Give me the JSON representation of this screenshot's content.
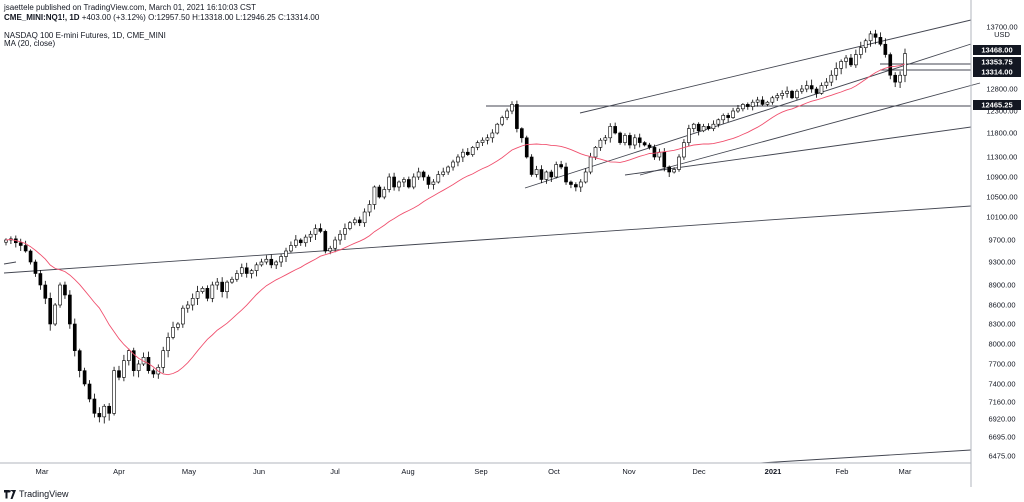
{
  "header": {
    "publisher": "jsaettele published on TradingView.com, March 01, 2021 16:10:03 CST",
    "symbol": "CME_MINI:NQ1!, 1D",
    "ohlc": "+403.00 (+3.12%) O:12957.50 H:13318.00 L:12946.25 C:13314.00",
    "instrument": "NASDAQ 100 E-mini Futures, 1D, CME_MINI",
    "study": "MA (20, close)"
  },
  "footer": {
    "brand": "TradingView"
  },
  "colors": {
    "up": "#ffffff",
    "down": "#000000",
    "wick": "#000000",
    "ma": "#f0506e",
    "trendline": "#434651",
    "level_label_bg": "#131722",
    "level_label_fg": "#ffffff"
  },
  "chart_data": {
    "type": "candlestick",
    "currency": "USD",
    "x_labels": [
      "Mar",
      "Apr",
      "May",
      "Jun",
      "Jul",
      "Aug",
      "Sep",
      "Oct",
      "Nov",
      "Dec",
      "2021",
      "Feb",
      "Mar"
    ],
    "y_ticks": [
      "13700.00",
      "12800.00",
      "12300.00",
      "11800.00",
      "11300.00",
      "10900.00",
      "10500.00",
      "10100.00",
      "9700.00",
      "9300.00",
      "8900.00",
      "8600.00",
      "8300.00",
      "8000.00",
      "7700.00",
      "7400.00",
      "7160.00",
      "6920.00",
      "6695.00",
      "6475.00"
    ],
    "ylim": [
      6400,
      13800
    ],
    "price_labels": [
      "13468.00",
      "13353.75",
      "13314.00",
      "12465.25"
    ],
    "last_close": 13314.0,
    "ma_period": 20,
    "closes": [
      9700,
      9720,
      9650,
      9600,
      9500,
      9300,
      9100,
      8900,
      8700,
      8300,
      8600,
      8900,
      8750,
      8300,
      7900,
      7600,
      7400,
      7200,
      7000,
      6950,
      7100,
      7000,
      7600,
      7500,
      7750,
      7900,
      7600,
      7700,
      7800,
      7600,
      7550,
      7650,
      7900,
      8100,
      8250,
      8300,
      8550,
      8600,
      8700,
      8800,
      8850,
      8700,
      8900,
      8950,
      8800,
      8950,
      9000,
      9100,
      9200,
      9100,
      9150,
      9250,
      9300,
      9350,
      9250,
      9300,
      9400,
      9500,
      9600,
      9700,
      9650,
      9750,
      9800,
      9900,
      9850,
      9500,
      9550,
      9700,
      9800,
      9900,
      10000,
      10050,
      10000,
      10200,
      10350,
      10700,
      10500,
      10650,
      10900,
      10700,
      10800,
      10850,
      10700,
      10900,
      11000,
      10900,
      10750,
      10800,
      10950,
      11000,
      11100,
      11200,
      11300,
      11400,
      11350,
      11500,
      11600,
      11650,
      11700,
      11800,
      12000,
      12150,
      12300,
      12450,
      11900,
      11700,
      11300,
      10950,
      11050,
      10850,
      11000,
      10900,
      11150,
      11100,
      10800,
      10750,
      10700,
      10800,
      11000,
      11300,
      11500,
      11650,
      11700,
      11950,
      11800,
      11600,
      11750,
      11550,
      11700,
      11600,
      11550,
      11500,
      11300,
      11400,
      11100,
      11000,
      11050,
      11300,
      11600,
      11900,
      12000,
      11850,
      11950,
      11900,
      12000,
      12100,
      12200,
      12150,
      12300,
      12350,
      12450,
      12400,
      12500,
      12550,
      12450,
      12500,
      12600,
      12650,
      12700,
      12750,
      12600,
      12750,
      12800,
      12850,
      12800,
      12700,
      12850,
      12900,
      13000,
      13100,
      13200,
      13250,
      13150,
      13300,
      13400,
      13500,
      13600,
      13550,
      13450,
      13300,
      13000,
      12900,
      13000,
      13314
    ]
  }
}
